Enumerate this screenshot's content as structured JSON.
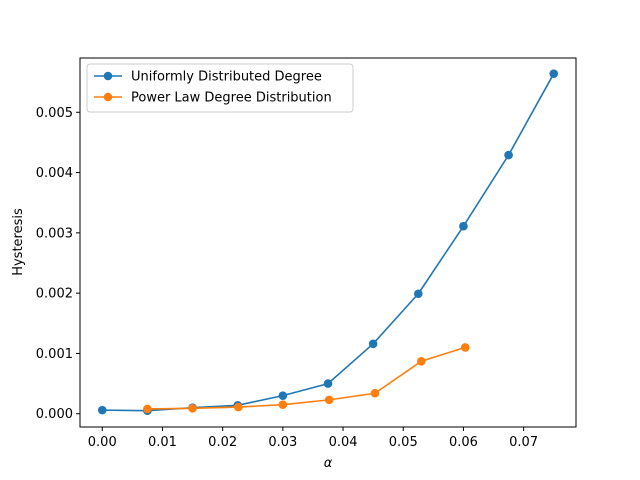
{
  "chart_data": {
    "type": "line",
    "xlabel": "α",
    "ylabel": "Hysteresis",
    "xlim": [
      -0.0037,
      0.0787
    ],
    "ylim": [
      -0.00022,
      0.0059
    ],
    "xticks": [
      0.0,
      0.01,
      0.02,
      0.03,
      0.04,
      0.05,
      0.06,
      0.07
    ],
    "xtick_labels": [
      "0.00",
      "0.01",
      "0.02",
      "0.03",
      "0.04",
      "0.05",
      "0.06",
      "0.07"
    ],
    "yticks": [
      0.0,
      0.001,
      0.002,
      0.003,
      0.004,
      0.005
    ],
    "ytick_labels": [
      "0.000",
      "0.001",
      "0.002",
      "0.003",
      "0.004",
      "0.005"
    ],
    "grid": false,
    "legend_position": "top-left",
    "series": [
      {
        "name": "Uniformly Distributed Degree",
        "color": "#1f77b4",
        "marker": "circle",
        "x": [
          0.0,
          0.0075,
          0.015,
          0.0225,
          0.03,
          0.0375,
          0.045,
          0.0525,
          0.06,
          0.0675,
          0.075
        ],
        "y": [
          6e-05,
          5e-05,
          0.0001,
          0.00014,
          0.0003,
          0.0005,
          0.00116,
          0.00199,
          0.00311,
          0.00429,
          0.00564
        ]
      },
      {
        "name": "Power Law Degree Distribution",
        "color": "#ff7f0e",
        "marker": "circle",
        "x": [
          0.0075,
          0.015,
          0.0226,
          0.03,
          0.0377,
          0.0453,
          0.053,
          0.0603
        ],
        "y": [
          8e-05,
          9e-05,
          0.00011,
          0.00015,
          0.00023,
          0.00034,
          0.00087,
          0.0011
        ]
      }
    ]
  }
}
